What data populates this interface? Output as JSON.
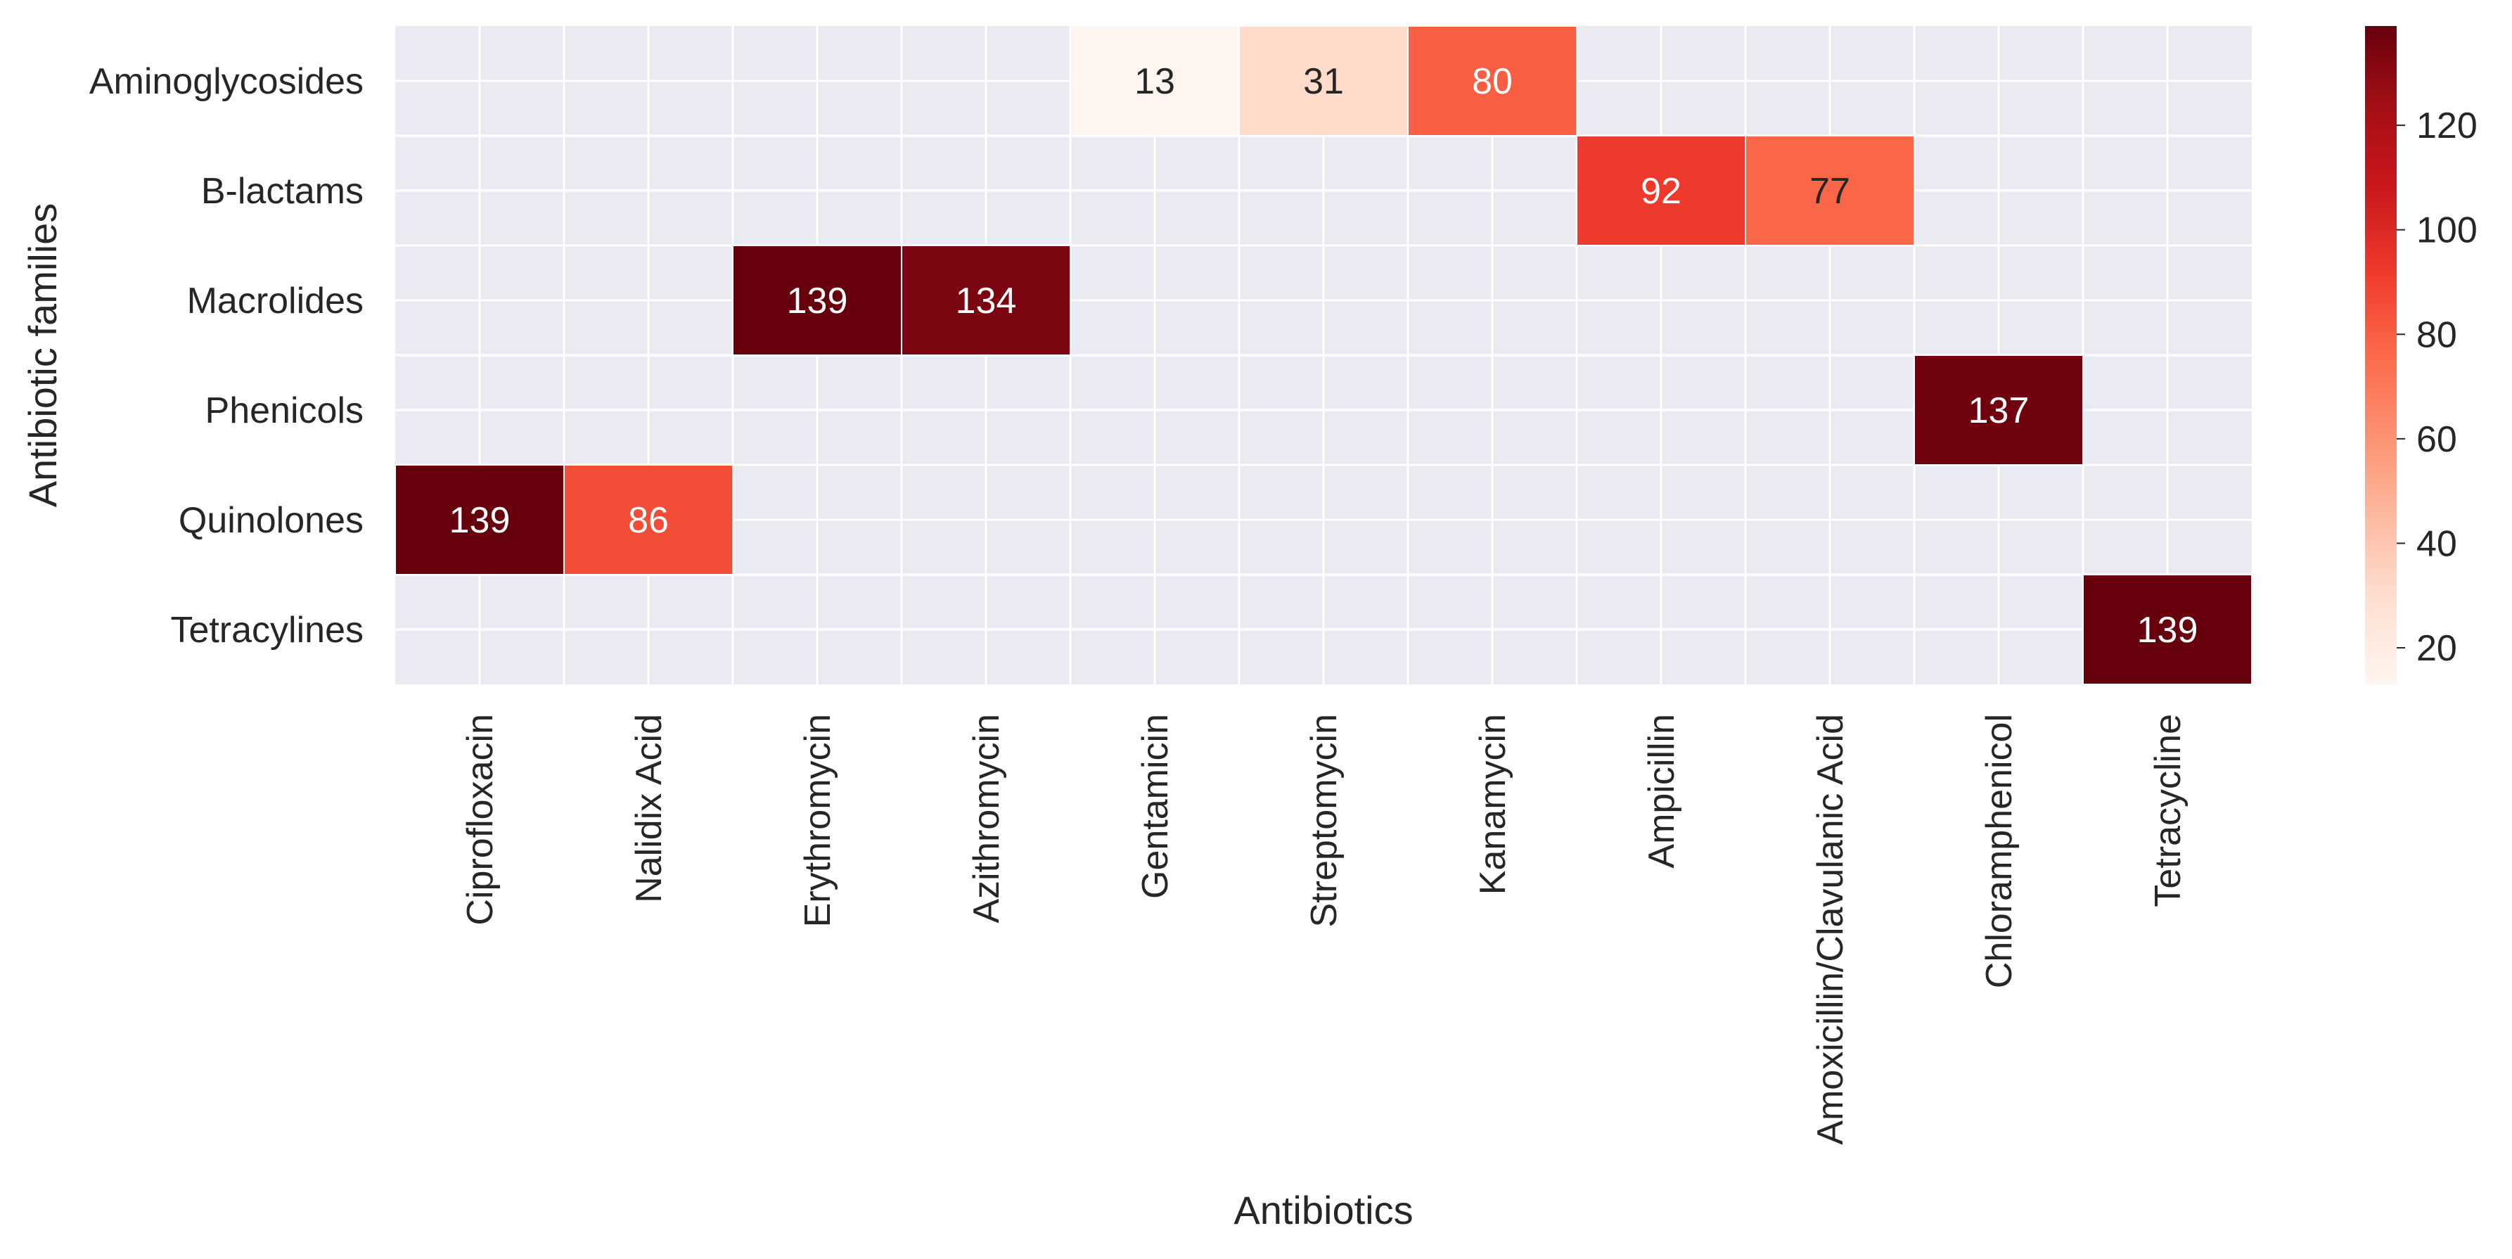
{
  "chart_data": {
    "type": "heatmap",
    "title": "",
    "xlabel": "Antibiotics",
    "ylabel": "Antibiotic families",
    "columns": [
      "Ciprofloxacin",
      "Nalidix Acid",
      "Erythromycin",
      "Azithromycin",
      "Gentamicin",
      "Streptomycin",
      "Kanamycin",
      "Ampicillin",
      "Amoxicillin/Clavulanic Acid",
      "Chloramphenicol",
      "Tetracycline"
    ],
    "rows": [
      "Aminoglycosides",
      "B-lactams",
      "Macrolides",
      "Phenicols",
      "Quinolones",
      "Tetracylines"
    ],
    "values": [
      [
        null,
        null,
        null,
        null,
        13,
        31,
        80,
        null,
        null,
        null,
        null
      ],
      [
        null,
        null,
        null,
        null,
        null,
        null,
        null,
        92,
        77,
        null,
        null
      ],
      [
        null,
        null,
        139,
        134,
        null,
        null,
        null,
        null,
        null,
        null,
        null
      ],
      [
        null,
        null,
        null,
        null,
        null,
        null,
        null,
        null,
        null,
        137,
        null
      ],
      [
        139,
        86,
        null,
        null,
        null,
        null,
        null,
        null,
        null,
        null,
        null
      ],
      [
        null,
        null,
        null,
        null,
        null,
        null,
        null,
        null,
        null,
        null,
        139
      ]
    ],
    "colormap": "Reds",
    "color_range": [
      13,
      139
    ],
    "colorbar_ticks": [
      20,
      40,
      60,
      80,
      100,
      120
    ],
    "colors": {
      "empty_cell": "#eaeaf2",
      "grid": "#ffffff",
      "text_dark": "#262626",
      "text_light": "#ffffff"
    }
  }
}
